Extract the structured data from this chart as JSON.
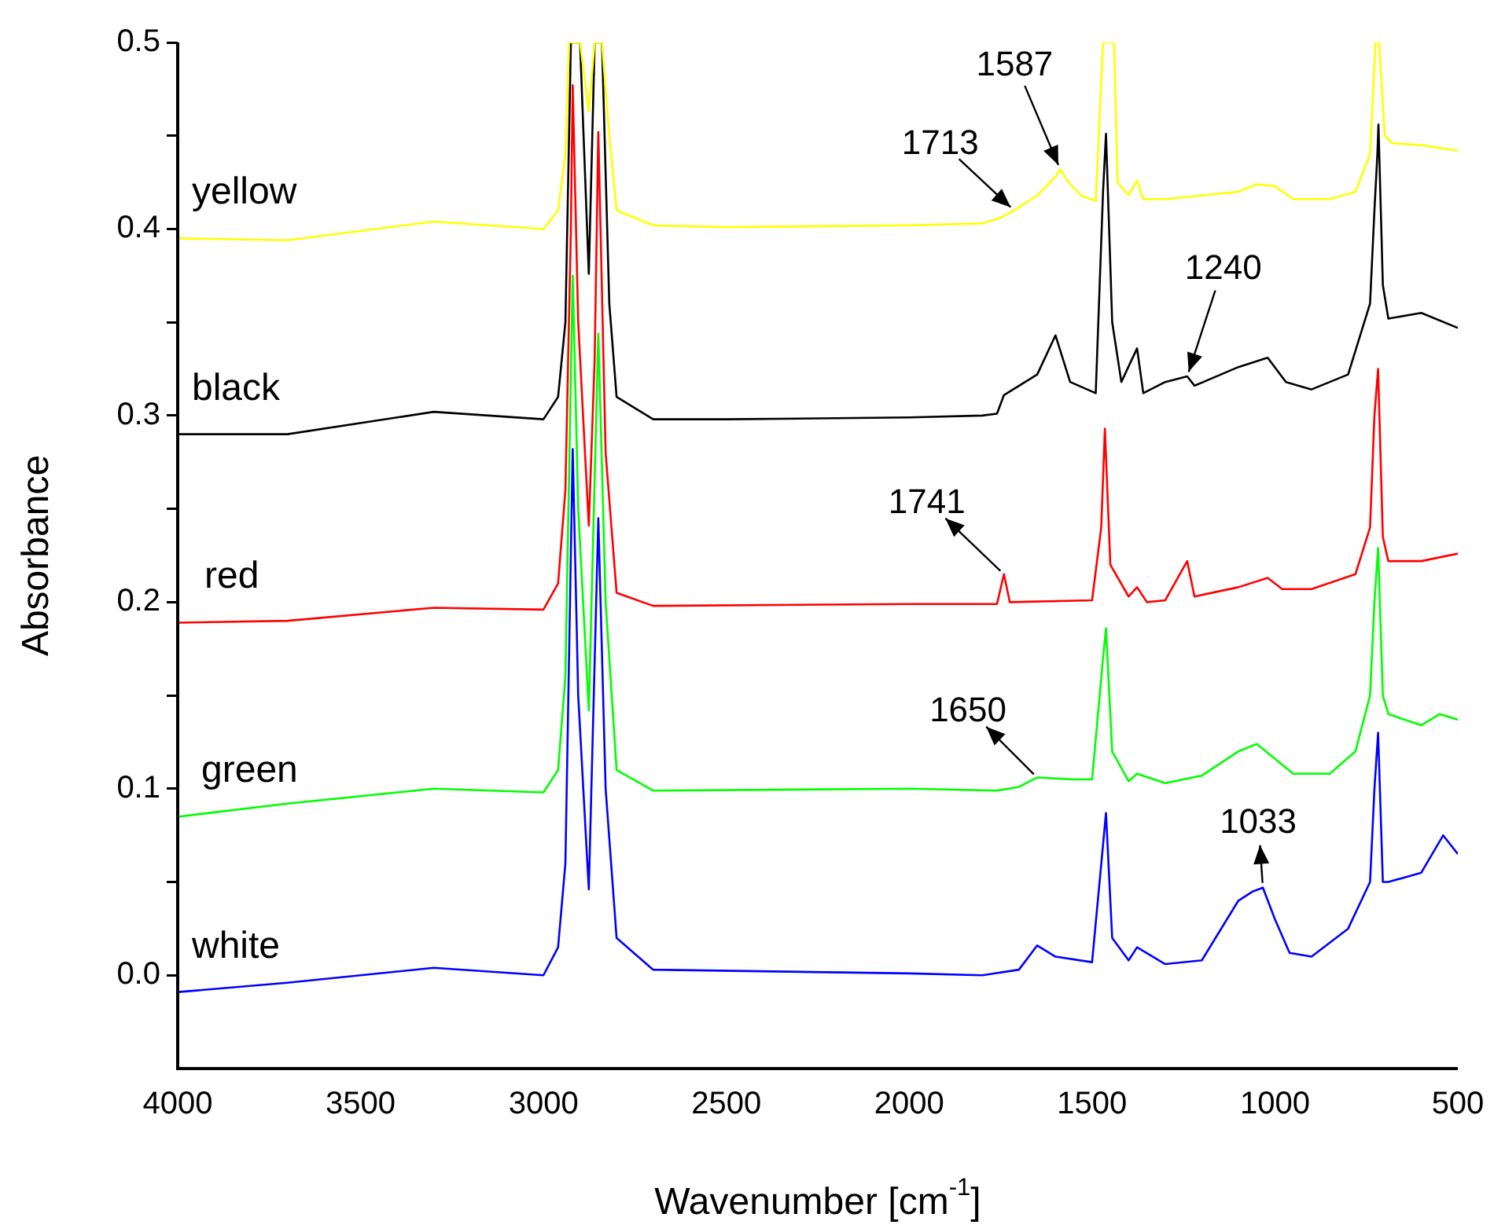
{
  "chart_data": {
    "type": "line",
    "xlabel": "Wavenumber [cm$^{-1}$]",
    "ylabel": "Absorbance",
    "xlim": [
      4000,
      500
    ],
    "ylim": [
      -0.05,
      0.5
    ],
    "xticks": [
      4000,
      3500,
      3000,
      2500,
      2000,
      1500,
      1000,
      500
    ],
    "yticks": [
      {
        "value": 0,
        "label": "0.0"
      },
      {
        "value": 0.05,
        "label": null
      },
      {
        "value": 0.1,
        "label": "0.1"
      },
      {
        "value": 0.15,
        "label": null
      },
      {
        "value": 0.2,
        "label": "0.2"
      },
      {
        "value": 0.25,
        "label": null
      },
      {
        "value": 0.3,
        "label": "0.3"
      },
      {
        "value": 0.35,
        "label": null
      },
      {
        "value": 0.4,
        "label": "0.4"
      },
      {
        "value": 0.45,
        "label": null
      },
      {
        "value": 0.5,
        "label": "0.5"
      }
    ],
    "grid": false,
    "legend": false,
    "marker": "none",
    "line_style": "solid",
    "series": [
      {
        "name": "yellow",
        "color": "#ffff00",
        "x": [
          4000,
          3700,
          3300,
          3000,
          2960,
          2940,
          2930,
          2900,
          2876,
          2860,
          2840,
          2820,
          2800,
          2700,
          2500,
          2000,
          1800,
          1750,
          1713,
          1650,
          1600,
          1587,
          1560,
          1530,
          1490,
          1470,
          1440,
          1430,
          1400,
          1377,
          1360,
          1300,
          1200,
          1100,
          1050,
          1000,
          950,
          850,
          780,
          740,
          725,
          715,
          700,
          680,
          600,
          500
        ],
        "values": [
          0.395,
          0.394,
          0.404,
          0.4,
          0.41,
          0.44,
          0.5,
          0.5,
          0.463,
          0.5,
          0.5,
          0.45,
          0.41,
          0.402,
          0.401,
          0.402,
          0.403,
          0.406,
          0.41,
          0.418,
          0.428,
          0.432,
          0.424,
          0.418,
          0.415,
          0.5,
          0.5,
          0.425,
          0.418,
          0.426,
          0.416,
          0.416,
          0.418,
          0.42,
          0.424,
          0.423,
          0.416,
          0.416,
          0.42,
          0.44,
          0.5,
          0.5,
          0.45,
          0.446,
          0.445,
          0.442
        ]
      },
      {
        "name": "black",
        "color": "#000000",
        "x": [
          4000,
          3700,
          3300,
          3000,
          2960,
          2940,
          2925,
          2900,
          2876,
          2860,
          2840,
          2820,
          2800,
          2700,
          2500,
          2000,
          1800,
          1760,
          1741,
          1650,
          1600,
          1560,
          1490,
          1470,
          1462,
          1445,
          1420,
          1377,
          1360,
          1300,
          1240,
          1220,
          1100,
          1020,
          970,
          900,
          800,
          740,
          728,
          720,
          717,
          705,
          690,
          600,
          500
        ],
        "values": [
          0.29,
          0.29,
          0.302,
          0.298,
          0.31,
          0.35,
          0.5,
          0.5,
          0.376,
          0.5,
          0.5,
          0.36,
          0.31,
          0.298,
          0.298,
          0.299,
          0.3,
          0.301,
          0.311,
          0.322,
          0.343,
          0.318,
          0.312,
          0.42,
          0.451,
          0.35,
          0.318,
          0.336,
          0.312,
          0.318,
          0.321,
          0.316,
          0.326,
          0.331,
          0.318,
          0.314,
          0.322,
          0.36,
          0.41,
          0.44,
          0.456,
          0.37,
          0.352,
          0.355,
          0.347
        ]
      },
      {
        "name": "red",
        "color": "#ff0000",
        "x": [
          4000,
          3700,
          3300,
          3000,
          2960,
          2940,
          2925,
          2920,
          2905,
          2876,
          2860,
          2850,
          2830,
          2800,
          2700,
          2000,
          1760,
          1741,
          1725,
          1500,
          1475,
          1465,
          1450,
          1400,
          1377,
          1350,
          1300,
          1240,
          1220,
          1100,
          1020,
          980,
          900,
          780,
          740,
          728,
          718,
          705,
          690,
          600,
          500
        ],
        "values": [
          0.189,
          0.19,
          0.197,
          0.196,
          0.21,
          0.26,
          0.4,
          0.477,
          0.35,
          0.241,
          0.33,
          0.452,
          0.28,
          0.205,
          0.198,
          0.199,
          0.199,
          0.215,
          0.2,
          0.201,
          0.24,
          0.293,
          0.22,
          0.203,
          0.208,
          0.2,
          0.201,
          0.222,
          0.203,
          0.208,
          0.213,
          0.207,
          0.207,
          0.215,
          0.24,
          0.3,
          0.325,
          0.235,
          0.222,
          0.222,
          0.226
        ]
      },
      {
        "name": "green",
        "color": "#00ff00",
        "x": [
          4000,
          3700,
          3300,
          3000,
          2960,
          2940,
          2920,
          2905,
          2876,
          2850,
          2830,
          2800,
          2700,
          2000,
          1760,
          1700,
          1650,
          1550,
          1500,
          1470,
          1462,
          1445,
          1400,
          1377,
          1300,
          1200,
          1100,
          1050,
          950,
          850,
          780,
          740,
          728,
          718,
          705,
          690,
          600,
          550,
          500
        ],
        "values": [
          0.085,
          0.092,
          0.1,
          0.098,
          0.11,
          0.16,
          0.375,
          0.25,
          0.142,
          0.344,
          0.2,
          0.11,
          0.099,
          0.1,
          0.099,
          0.101,
          0.106,
          0.105,
          0.105,
          0.17,
          0.186,
          0.12,
          0.104,
          0.108,
          0.103,
          0.107,
          0.12,
          0.124,
          0.108,
          0.108,
          0.12,
          0.15,
          0.2,
          0.229,
          0.15,
          0.14,
          0.134,
          0.14,
          0.137
        ]
      },
      {
        "name": "white",
        "color": "#0000ff",
        "x": [
          4000,
          3700,
          3300,
          3000,
          2960,
          2940,
          2920,
          2905,
          2876,
          2850,
          2830,
          2800,
          2700,
          2000,
          1800,
          1700,
          1650,
          1600,
          1500,
          1470,
          1462,
          1445,
          1400,
          1377,
          1300,
          1200,
          1100,
          1060,
          1033,
          1000,
          960,
          900,
          800,
          740,
          728,
          718,
          705,
          690,
          600,
          540,
          500
        ],
        "values": [
          -0.009,
          -0.004,
          0.004,
          0.0,
          0.015,
          0.06,
          0.282,
          0.15,
          0.046,
          0.245,
          0.1,
          0.02,
          0.003,
          0.001,
          0.0,
          0.003,
          0.016,
          0.01,
          0.007,
          0.07,
          0.087,
          0.02,
          0.008,
          0.015,
          0.006,
          0.008,
          0.04,
          0.045,
          0.047,
          0.03,
          0.012,
          0.01,
          0.025,
          0.05,
          0.1,
          0.13,
          0.05,
          0.05,
          0.055,
          0.075,
          0.065
        ]
      }
    ],
    "annotations": [
      {
        "text": "1713",
        "x": 1713,
        "y": 0.41
      },
      {
        "text": "1587",
        "x": 1587,
        "y": 0.432
      },
      {
        "text": "1240",
        "x": 1240,
        "y": 0.321
      },
      {
        "text": "1741",
        "x": 1741,
        "y": 0.215
      },
      {
        "text": "1650",
        "x": 1650,
        "y": 0.106
      },
      {
        "text": "1033",
        "x": 1033,
        "y": 0.047
      }
    ]
  }
}
